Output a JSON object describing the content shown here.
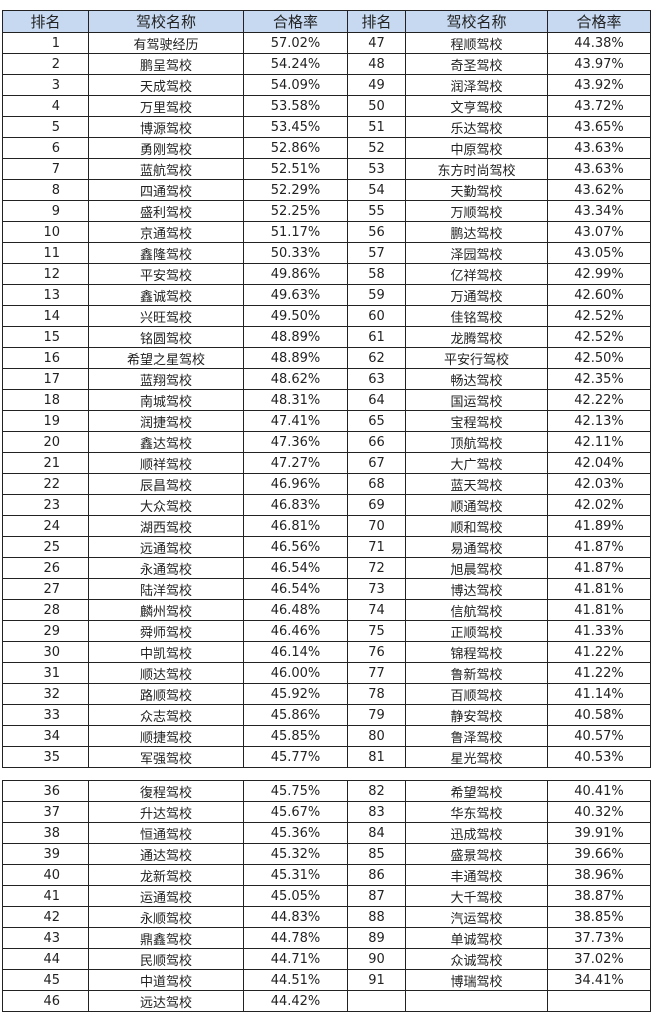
{
  "table": {
    "header": [
      "排名",
      "驾校名称",
      "合格率",
      "排名",
      "驾校名称",
      "合格率"
    ],
    "sections": [
      {
        "rows": [
          [
            1,
            "有驾驶经历",
            "57.02%",
            47,
            "程顺驾校",
            "44.38%"
          ],
          [
            2,
            "鹏呈驾校",
            "54.24%",
            48,
            "奇圣驾校",
            "43.97%"
          ],
          [
            3,
            "天成驾校",
            "54.09%",
            49,
            "润泽驾校",
            "43.92%"
          ],
          [
            4,
            "万里驾校",
            "53.58%",
            50,
            "文亨驾校",
            "43.72%"
          ],
          [
            5,
            "博源驾校",
            "53.45%",
            51,
            "乐达驾校",
            "43.65%"
          ],
          [
            6,
            "勇刚驾校",
            "52.86%",
            52,
            "中原驾校",
            "43.63%"
          ],
          [
            7,
            "蓝航驾校",
            "52.51%",
            53,
            "东方时尚驾校",
            "43.63%"
          ],
          [
            8,
            "四通驾校",
            "52.29%",
            54,
            "天勤驾校",
            "43.62%"
          ],
          [
            9,
            "盛利驾校",
            "52.25%",
            55,
            "万顺驾校",
            "43.34%"
          ],
          [
            10,
            "京通驾校",
            "51.17%",
            56,
            "鹏达驾校",
            "43.07%"
          ],
          [
            11,
            "鑫隆驾校",
            "50.33%",
            57,
            "泽园驾校",
            "43.05%"
          ],
          [
            12,
            "平安驾校",
            "49.86%",
            58,
            "亿祥驾校",
            "42.99%"
          ],
          [
            13,
            "鑫诚驾校",
            "49.63%",
            59,
            "万通驾校",
            "42.60%"
          ],
          [
            14,
            "兴旺驾校",
            "49.50%",
            60,
            "佳铭驾校",
            "42.52%"
          ],
          [
            15,
            "铭圆驾校",
            "48.89%",
            61,
            "龙腾驾校",
            "42.52%"
          ],
          [
            16,
            "希望之星驾校",
            "48.89%",
            62,
            "平安行驾校",
            "42.50%"
          ],
          [
            17,
            "蓝翔驾校",
            "48.62%",
            63,
            "畅达驾校",
            "42.35%"
          ],
          [
            18,
            "南城驾校",
            "48.31%",
            64,
            "国运驾校",
            "42.22%"
          ],
          [
            19,
            "润捷驾校",
            "47.41%",
            65,
            "宝程驾校",
            "42.13%"
          ],
          [
            20,
            "鑫达驾校",
            "47.36%",
            66,
            "顶航驾校",
            "42.11%"
          ],
          [
            21,
            "顺祥驾校",
            "47.27%",
            67,
            "大广驾校",
            "42.04%"
          ],
          [
            22,
            "辰昌驾校",
            "46.96%",
            68,
            "蓝天驾校",
            "42.03%"
          ],
          [
            23,
            "大众驾校",
            "46.83%",
            69,
            "顺通驾校",
            "42.02%"
          ],
          [
            24,
            "湖西驾校",
            "46.81%",
            70,
            "顺和驾校",
            "41.89%"
          ],
          [
            25,
            "远通驾校",
            "46.56%",
            71,
            "易通驾校",
            "41.87%"
          ],
          [
            26,
            "永通驾校",
            "46.54%",
            72,
            "旭晨驾校",
            "41.87%"
          ],
          [
            27,
            "陆洋驾校",
            "46.54%",
            73,
            "博达驾校",
            "41.81%"
          ],
          [
            28,
            "麟州驾校",
            "46.48%",
            74,
            "信航驾校",
            "41.81%"
          ],
          [
            29,
            "舜师驾校",
            "46.46%",
            75,
            "正顺驾校",
            "41.33%"
          ],
          [
            30,
            "中凯驾校",
            "46.14%",
            76,
            "锦程驾校",
            "41.22%"
          ],
          [
            31,
            "顺达驾校",
            "46.00%",
            77,
            "鲁新驾校",
            "41.22%"
          ],
          [
            32,
            "路顺驾校",
            "45.92%",
            78,
            "百顺驾校",
            "41.14%"
          ],
          [
            33,
            "众志驾校",
            "45.86%",
            79,
            "静安驾校",
            "40.58%"
          ],
          [
            34,
            "顺捷驾校",
            "45.85%",
            80,
            "鲁泽驾校",
            "40.57%"
          ],
          [
            35,
            "军强驾校",
            "45.77%",
            81,
            "星光驾校",
            "40.53%"
          ]
        ]
      },
      {
        "rows": [
          [
            36,
            "復程驾校",
            "45.75%",
            82,
            "希望驾校",
            "40.41%"
          ],
          [
            37,
            "升达驾校",
            "45.67%",
            83,
            "华东驾校",
            "40.32%"
          ],
          [
            38,
            "恒通驾校",
            "45.36%",
            84,
            "迅成驾校",
            "39.91%"
          ],
          [
            39,
            "通达驾校",
            "45.32%",
            85,
            "盛景驾校",
            "39.66%"
          ],
          [
            40,
            "龙新驾校",
            "45.31%",
            86,
            "丰通驾校",
            "38.96%"
          ],
          [
            41,
            "运通驾校",
            "45.05%",
            87,
            "大千驾校",
            "38.87%"
          ],
          [
            42,
            "永顺驾校",
            "44.83%",
            88,
            "汽运驾校",
            "38.85%"
          ],
          [
            43,
            "鼎鑫驾校",
            "44.78%",
            89,
            "单诚驾校",
            "37.73%"
          ],
          [
            44,
            "民顺驾校",
            "44.71%",
            90,
            "众诚驾校",
            "37.02%"
          ],
          [
            45,
            "中道驾校",
            "44.51%",
            91,
            "博瑞驾校",
            "34.41%"
          ],
          [
            46,
            "远达驾校",
            "44.42%"
          ]
        ]
      }
    ]
  }
}
